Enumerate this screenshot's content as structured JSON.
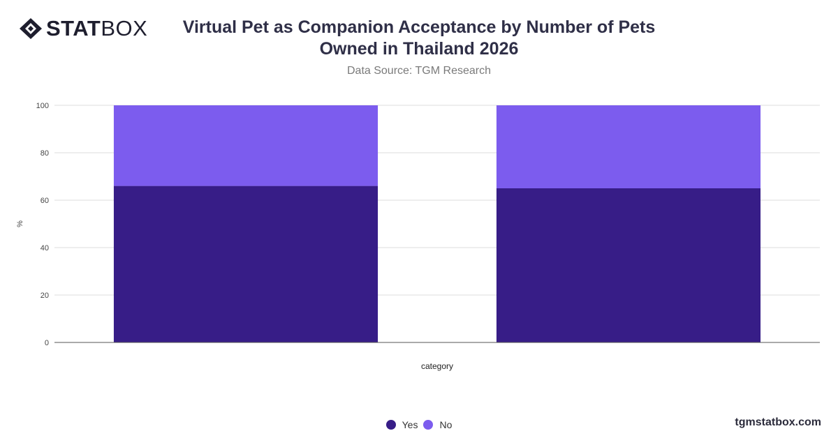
{
  "brand": {
    "logo_bold": "STAT",
    "logo_light": "BOX",
    "watermark": "tgmstatbox.com"
  },
  "chart_data": {
    "type": "bar",
    "stacked": true,
    "title": "Virtual Pet as Companion Acceptance by Number of Pets Owned in Thailand 2026",
    "subtitle": "Data Source: TGM Research",
    "xlabel": "category",
    "ylabel": "%",
    "ylim": [
      0,
      100
    ],
    "yticks": [
      0,
      20,
      40,
      60,
      80,
      100
    ],
    "grid": true,
    "legend_position": "bottom",
    "categories": [
      "",
      ""
    ],
    "series": [
      {
        "name": "Yes",
        "color": "#371d87",
        "values": [
          66,
          65
        ]
      },
      {
        "name": "No",
        "color": "#7c5cee",
        "values": [
          34,
          35
        ]
      }
    ]
  }
}
